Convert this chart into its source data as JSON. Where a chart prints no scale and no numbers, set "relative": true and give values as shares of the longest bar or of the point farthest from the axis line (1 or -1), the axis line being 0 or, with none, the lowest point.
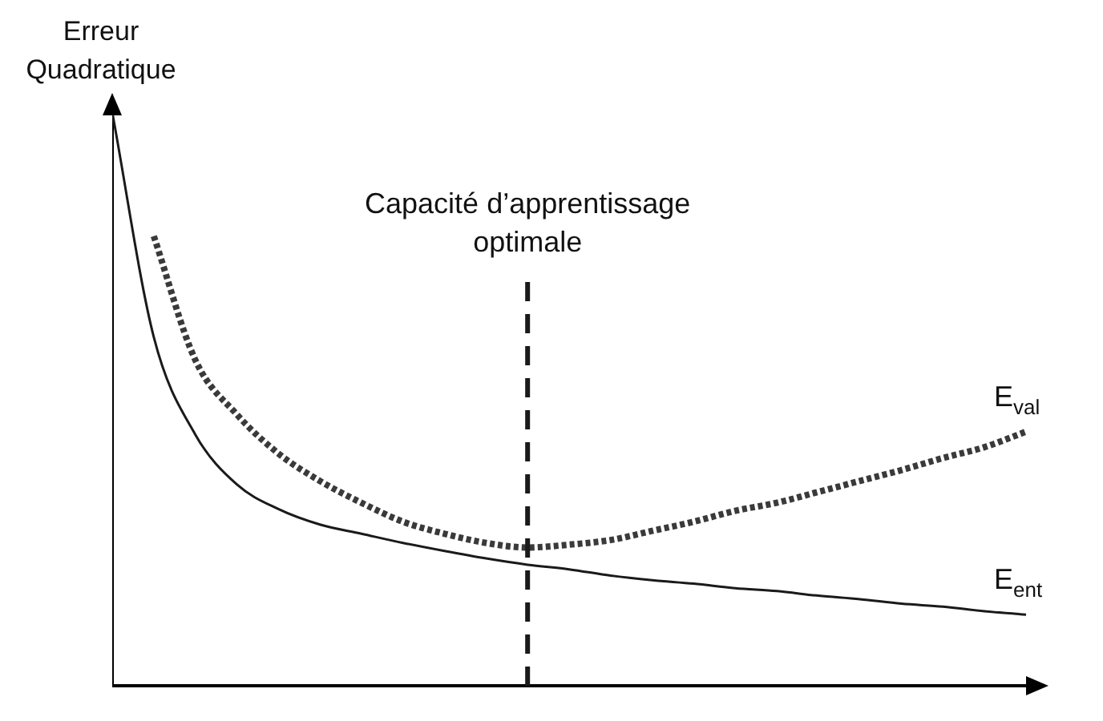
{
  "chart_data": {
    "type": "line",
    "relative": true,
    "ylabel": "Erreur Quadratique",
    "legend": false,
    "grid": false,
    "marker": "none",
    "categories": [
      null,
      null,
      null,
      null,
      null,
      null,
      null,
      null,
      null,
      null,
      null,
      null,
      null,
      null,
      null,
      null,
      null,
      null,
      null,
      null,
      null,
      null,
      null
    ],
    "series": [
      {
        "name": "E$_{val}$",
        "color": "#3a3a3a",
        "line_style": "dotted",
        "values": [
          null,
          0.784,
          0.568,
          0.473,
          0.405,
          0.357,
          0.319,
          0.286,
          0.265,
          0.249,
          0.241,
          0.246,
          0.254,
          0.27,
          0.286,
          0.305,
          0.319,
          0.338,
          0.357,
          0.376,
          0.397,
          0.416,
          0.443
        ]
      },
      {
        "name": "E$_{ent}$",
        "color": "#1a1a1a",
        "line_style": "solid",
        "values": [
          1.0,
          0.608,
          0.438,
          0.351,
          0.308,
          0.281,
          0.265,
          0.249,
          0.235,
          0.222,
          0.211,
          0.203,
          0.192,
          0.184,
          0.178,
          0.17,
          0.165,
          0.157,
          0.151,
          0.143,
          0.138,
          0.13,
          0.124
        ]
      }
    ],
    "annotations": [
      "Capacité d’apprentissage optimale"
    ]
  }
}
